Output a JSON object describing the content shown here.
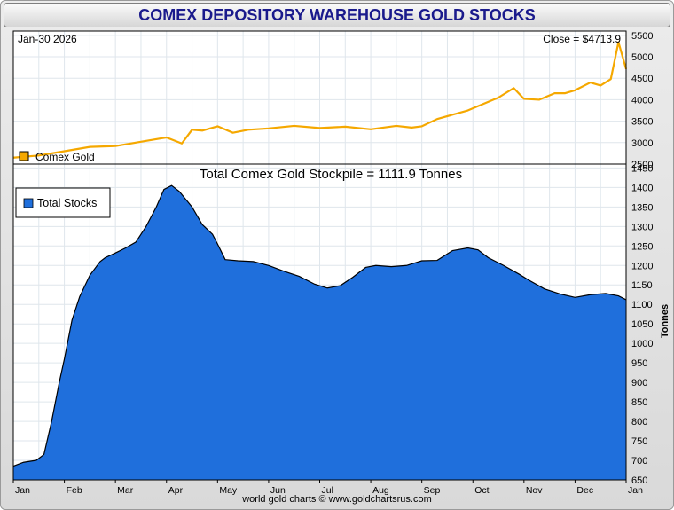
{
  "title": "COMEX DEPOSITORY WAREHOUSE GOLD STOCKS",
  "credit": "world gold charts © www.goldchartsrus.com",
  "colors": {
    "price_line": "#f5a800",
    "stocks_fill": "#1f6fdc",
    "stocks_line": "#000000",
    "grid": "#dfe6ec",
    "title_text": "#1a1a8c"
  },
  "chart_data": [
    {
      "type": "line",
      "name": "Comex Gold",
      "date_label": "Jan-30  2026",
      "close_label": "Close = $4713.9",
      "legend": "Comex Gold",
      "ylim": [
        2500,
        5600
      ],
      "yticks": [
        2500,
        3000,
        3500,
        4000,
        4500,
        5000,
        5500
      ],
      "x_month_index": [
        0,
        0.5,
        1,
        1.5,
        2,
        2.5,
        2.9,
        3,
        3.3,
        3.5,
        3.7,
        4,
        4.3,
        4.6,
        5,
        5.5,
        6,
        6.5,
        7,
        7.5,
        7.8,
        8,
        8.3,
        8.6,
        8.9,
        9.2,
        9.5,
        9.8,
        10,
        10.3,
        10.6,
        10.8,
        11,
        11.3,
        11.5,
        11.7,
        11.85,
        12.0
      ],
      "values": [
        2650,
        2700,
        2800,
        2900,
        2920,
        3020,
        3100,
        3120,
        2980,
        3300,
        3280,
        3380,
        3230,
        3300,
        3330,
        3390,
        3340,
        3370,
        3310,
        3390,
        3350,
        3380,
        3550,
        3650,
        3750,
        3900,
        4050,
        4270,
        4020,
        4000,
        4150,
        4150,
        4220,
        4400,
        4330,
        4480,
        5340,
        4714
      ]
    },
    {
      "type": "area",
      "name": "Total Stocks",
      "title": "Total Comex Gold Stockpile = 1111.9 Tonnes",
      "legend": "Total Stocks",
      "ylabel": "Tonnes",
      "ylim": [
        650,
        1460
      ],
      "yticks": [
        650,
        700,
        750,
        800,
        850,
        900,
        950,
        1000,
        1050,
        1100,
        1150,
        1200,
        1250,
        1300,
        1350,
        1400,
        1450
      ],
      "x_month_index": [
        0,
        0.2,
        0.45,
        0.6,
        0.75,
        0.9,
        1,
        1.15,
        1.3,
        1.5,
        1.7,
        1.8,
        2,
        2.2,
        2.4,
        2.6,
        2.8,
        2.95,
        3.1,
        3.25,
        3.5,
        3.7,
        3.9,
        4,
        4.15,
        4.4,
        4.7,
        5,
        5.3,
        5.6,
        5.9,
        6.15,
        6.4,
        6.65,
        6.9,
        7.1,
        7.4,
        7.7,
        8,
        8.3,
        8.6,
        8.9,
        9.1,
        9.3,
        9.6,
        9.9,
        10.1,
        10.4,
        10.7,
        11,
        11.3,
        11.6,
        11.85,
        12.0
      ],
      "values": [
        685,
        695,
        700,
        715,
        800,
        900,
        960,
        1060,
        1120,
        1175,
        1210,
        1220,
        1232,
        1245,
        1260,
        1300,
        1350,
        1395,
        1405,
        1390,
        1350,
        1305,
        1280,
        1255,
        1215,
        1212,
        1210,
        1200,
        1185,
        1172,
        1152,
        1142,
        1148,
        1170,
        1195,
        1200,
        1197,
        1200,
        1212,
        1213,
        1238,
        1245,
        1240,
        1220,
        1200,
        1178,
        1162,
        1140,
        1127,
        1118,
        1125,
        1128,
        1122,
        1112
      ]
    }
  ],
  "x_axis": {
    "months": [
      "Jan",
      "Feb",
      "Mar",
      "Apr",
      "May",
      "Jun",
      "Jul",
      "Aug",
      "Sep",
      "Oct",
      "Nov",
      "Dec",
      "Jan"
    ]
  }
}
